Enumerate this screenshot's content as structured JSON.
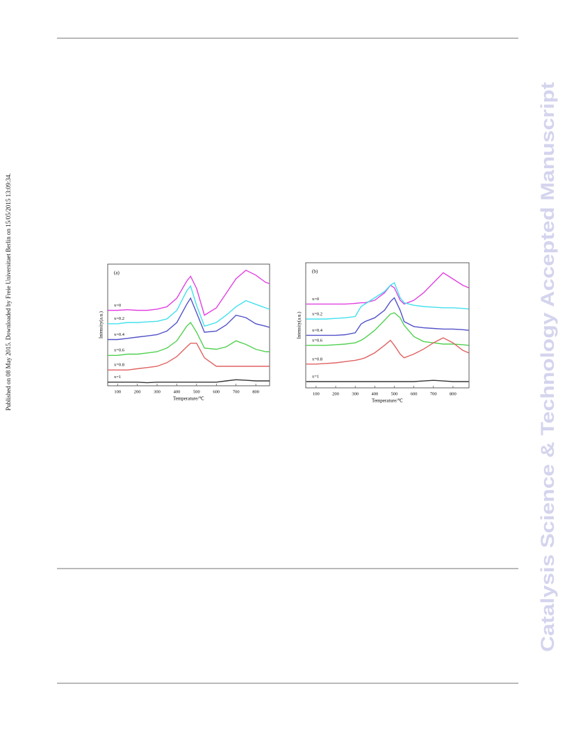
{
  "side_note": "Published on 08 May 2015. Downloaded by Freie Universitaet Berlin on 15/05/2015 13:09:34.",
  "watermark": "Catalysis Science & Technology Accepted Manuscript",
  "chart_data": [
    {
      "type": "line",
      "panel_label": "(a)",
      "x_label": "Temperature/℃",
      "y_label": "Intensity(a.u.)",
      "x": [
        50,
        100,
        150,
        200,
        250,
        300,
        350,
        400,
        450,
        470,
        500,
        540,
        600,
        650,
        700,
        750,
        800,
        850,
        870
      ],
      "xlim": [
        50,
        870
      ],
      "xticks": [
        100,
        200,
        300,
        400,
        500,
        600,
        700,
        800
      ],
      "ylim": [
        0,
        100
      ],
      "series": [
        {
          "name": "x=0",
          "color": "#e040e0",
          "values": [
            62,
            62,
            62.5,
            62,
            62,
            63,
            65,
            72,
            86,
            90,
            80,
            58,
            64,
            76,
            88,
            95,
            91,
            85,
            84
          ]
        },
        {
          "name": "x=0.2",
          "color": "#40e0ee",
          "values": [
            51,
            51,
            52,
            52,
            52.5,
            53,
            55,
            62,
            78,
            82,
            66,
            49,
            52,
            58,
            65,
            70,
            67,
            64,
            63
          ]
        },
        {
          "name": "x=0.4",
          "color": "#5050c8",
          "values": [
            38,
            38,
            39,
            40,
            41,
            42,
            45,
            52,
            67,
            72,
            60,
            44,
            45,
            50,
            58,
            56,
            51,
            49,
            48
          ]
        },
        {
          "name": "x=0.6",
          "color": "#4fd04f",
          "values": [
            25,
            25,
            26,
            26,
            27,
            28,
            31,
            37,
            49,
            52,
            44,
            31,
            30,
            32,
            37,
            34,
            30,
            28,
            28
          ]
        },
        {
          "name": "x=0.8",
          "color": "#e06060",
          "values": [
            13,
            13,
            13,
            14,
            15,
            16,
            19,
            24,
            32,
            35,
            35,
            23,
            16,
            16,
            16,
            16,
            16,
            16,
            16
          ]
        },
        {
          "name": "x=1",
          "color": "#333333",
          "values": [
            3,
            3,
            3,
            3,
            2.5,
            3,
            3,
            3,
            3,
            3,
            3,
            3,
            3,
            4,
            5,
            4.5,
            4,
            4,
            4
          ]
        }
      ]
    },
    {
      "type": "line",
      "panel_label": "(b)",
      "x_label": "Temperature/℃",
      "y_label": "Intensity(a.u.)",
      "x": [
        50,
        100,
        150,
        200,
        250,
        300,
        330,
        350,
        400,
        450,
        480,
        500,
        530,
        550,
        600,
        650,
        700,
        750,
        800,
        850,
        880
      ],
      "xlim": [
        47,
        882
      ],
      "xticks": [
        100,
        200,
        300,
        400,
        500,
        600,
        700,
        800
      ],
      "ylim": [
        0,
        100
      ],
      "series": [
        {
          "name": "x=0",
          "color": "#e040e0",
          "values": [
            67,
            67,
            67,
            67,
            67,
            67.5,
            68,
            68,
            70,
            76,
            82,
            80,
            70,
            67,
            70,
            76,
            84,
            92,
            87,
            82,
            80
          ]
        },
        {
          "name": "x=0.2",
          "color": "#40e0ee",
          "values": [
            55,
            55,
            55,
            55.5,
            56,
            57,
            65,
            67,
            72,
            77,
            82,
            84,
            72,
            68,
            66,
            65,
            64.5,
            64,
            64,
            63.5,
            63
          ]
        },
        {
          "name": "x=0.4",
          "color": "#5050c8",
          "values": [
            42,
            42,
            42,
            42,
            42.5,
            44,
            51,
            53,
            56,
            62,
            69,
            72,
            62,
            53,
            49,
            48,
            47.5,
            47,
            47,
            46.5,
            46
          ]
        },
        {
          "name": "x=0.6",
          "color": "#4fd04f",
          "values": [
            34,
            34,
            34,
            34.5,
            35,
            36,
            38,
            40,
            46,
            54,
            59,
            60,
            56,
            50,
            41,
            37,
            36,
            35,
            35,
            34.5,
            34
          ]
        },
        {
          "name": "x=0.8",
          "color": "#e06060",
          "values": [
            19,
            19,
            19.5,
            20,
            21,
            22,
            23,
            24,
            28,
            34,
            38,
            34,
            27,
            24,
            27,
            31,
            36,
            40,
            36,
            30,
            28
          ]
        },
        {
          "name": "x=1",
          "color": "#333333",
          "values": [
            5,
            5,
            5,
            5,
            5,
            5,
            5,
            5,
            5,
            5,
            5,
            5,
            5,
            5,
            5,
            5.5,
            6,
            5.5,
            5,
            5,
            5
          ]
        }
      ]
    }
  ]
}
